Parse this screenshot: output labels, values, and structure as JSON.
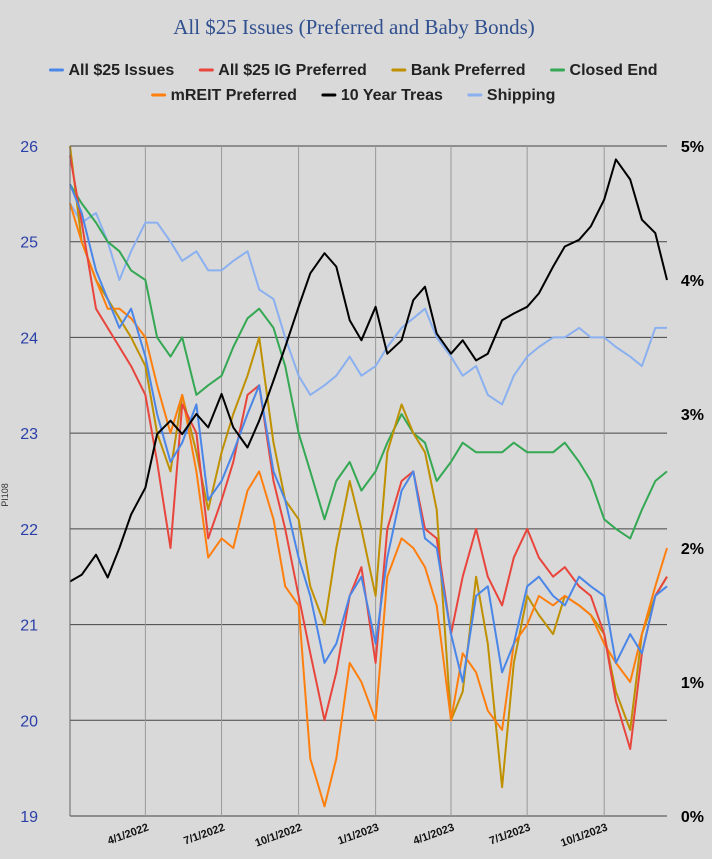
{
  "chart_data": {
    "type": "line",
    "title": "All $25 Issues (Preferred and Baby Bonds)",
    "ylabel": "PI108",
    "x_ticks": [
      "4/1/2022",
      "7/1/2022",
      "10/1/2022",
      "1/1/2023",
      "4/1/2023",
      "7/1/2023",
      "10/1/2023"
    ],
    "x_range": [
      "2022-01-01",
      "2023-12-15"
    ],
    "ylim_left": [
      19,
      26
    ],
    "y_ticks_left": [
      "19",
      "20",
      "21",
      "22",
      "23",
      "24",
      "25",
      "26"
    ],
    "ylim_right": [
      0,
      5
    ],
    "y_ticks_right": [
      "0%",
      "1%",
      "2%",
      "3%",
      "4%",
      "5%"
    ],
    "grid": "horizontal major lines, vertical lines at x ticks",
    "legend_position": "top",
    "series": [
      {
        "name": "All $25 Issues",
        "color": "#4a86e8",
        "axis": "left",
        "x": [
          "2022-01-01",
          "2022-01-15",
          "2022-02-01",
          "2022-02-15",
          "2022-03-01",
          "2022-03-15",
          "2022-04-01",
          "2022-04-15",
          "2022-05-01",
          "2022-05-15",
          "2022-06-01",
          "2022-06-15",
          "2022-07-01",
          "2022-07-15",
          "2022-08-01",
          "2022-08-15",
          "2022-09-01",
          "2022-09-15",
          "2022-10-01",
          "2022-10-15",
          "2022-11-01",
          "2022-11-15",
          "2022-12-01",
          "2022-12-15",
          "2023-01-01",
          "2023-01-15",
          "2023-02-01",
          "2023-02-15",
          "2023-03-01",
          "2023-03-15",
          "2023-04-01",
          "2023-04-15",
          "2023-05-01",
          "2023-05-15",
          "2023-06-01",
          "2023-06-15",
          "2023-07-01",
          "2023-07-15",
          "2023-08-01",
          "2023-08-15",
          "2023-09-01",
          "2023-09-15",
          "2023-10-01",
          "2023-10-15",
          "2023-11-01",
          "2023-11-15",
          "2023-12-01",
          "2023-12-15"
        ],
        "y": [
          25.6,
          25.3,
          24.7,
          24.4,
          24.1,
          24.3,
          23.8,
          23.2,
          22.7,
          22.9,
          23.3,
          22.3,
          22.5,
          22.8,
          23.2,
          23.5,
          22.6,
          22.3,
          21.7,
          21.3,
          20.6,
          20.8,
          21.3,
          21.5,
          20.8,
          21.7,
          22.4,
          22.6,
          21.9,
          21.8,
          20.9,
          20.4,
          21.3,
          21.4,
          20.5,
          20.8,
          21.4,
          21.5,
          21.3,
          21.2,
          21.5,
          21.4,
          21.3,
          20.6,
          20.9,
          20.7,
          21.3,
          21.4
        ]
      },
      {
        "name": "All $25 IG Preferred",
        "color": "#e8453c",
        "axis": "left",
        "x": [
          "2022-01-01",
          "2022-01-15",
          "2022-02-01",
          "2022-02-15",
          "2022-03-01",
          "2022-03-15",
          "2022-04-01",
          "2022-04-15",
          "2022-05-01",
          "2022-05-15",
          "2022-06-01",
          "2022-06-15",
          "2022-07-01",
          "2022-07-15",
          "2022-08-01",
          "2022-08-15",
          "2022-09-01",
          "2022-09-15",
          "2022-10-01",
          "2022-10-15",
          "2022-11-01",
          "2022-11-15",
          "2022-12-01",
          "2022-12-15",
          "2023-01-01",
          "2023-01-15",
          "2023-02-01",
          "2023-02-15",
          "2023-03-01",
          "2023-03-15",
          "2023-04-01",
          "2023-04-15",
          "2023-05-01",
          "2023-05-15",
          "2023-06-01",
          "2023-06-15",
          "2023-07-01",
          "2023-07-15",
          "2023-08-01",
          "2023-08-15",
          "2023-09-01",
          "2023-09-15",
          "2023-10-01",
          "2023-10-15",
          "2023-11-01",
          "2023-11-15",
          "2023-12-01",
          "2023-12-15"
        ],
        "y": [
          25.9,
          25.2,
          24.3,
          24.1,
          23.9,
          23.7,
          23.4,
          22.7,
          21.8,
          23.3,
          23.0,
          21.9,
          22.3,
          22.7,
          23.4,
          23.5,
          22.5,
          22.0,
          21.3,
          20.7,
          20.0,
          20.5,
          21.3,
          21.6,
          20.6,
          22.0,
          22.5,
          22.6,
          22.0,
          21.9,
          20.9,
          21.5,
          22.0,
          21.5,
          21.2,
          21.7,
          22.0,
          21.7,
          21.5,
          21.6,
          21.4,
          21.3,
          20.9,
          20.2,
          19.7,
          20.7,
          21.3,
          21.5
        ]
      },
      {
        "name": "Bank Preferred",
        "color": "#bf9000",
        "axis": "left",
        "x": [
          "2022-01-01",
          "2022-01-15",
          "2022-02-01",
          "2022-02-15",
          "2022-03-01",
          "2022-03-15",
          "2022-04-01",
          "2022-04-15",
          "2022-05-01",
          "2022-05-15",
          "2022-06-01",
          "2022-06-15",
          "2022-07-01",
          "2022-07-15",
          "2022-08-01",
          "2022-08-15",
          "2022-09-01",
          "2022-09-15",
          "2022-10-01",
          "2022-10-15",
          "2022-11-01",
          "2022-11-15",
          "2022-12-01",
          "2022-12-15",
          "2023-01-01",
          "2023-01-15",
          "2023-02-01",
          "2023-02-15",
          "2023-03-01",
          "2023-03-15",
          "2023-04-01",
          "2023-04-15",
          "2023-05-01",
          "2023-05-15",
          "2023-06-01",
          "2023-06-15",
          "2023-07-01",
          "2023-07-15",
          "2023-08-01",
          "2023-08-15",
          "2023-09-01",
          "2023-09-15",
          "2023-10-01",
          "2023-10-15",
          "2023-11-01",
          "2023-11-15",
          "2023-12-01",
          "2023-12-15"
        ],
        "y": [
          26.0,
          25.0,
          24.6,
          24.4,
          24.2,
          24.0,
          23.7,
          23.0,
          22.6,
          23.4,
          22.8,
          22.2,
          22.8,
          23.2,
          23.6,
          24.0,
          22.9,
          22.3,
          22.1,
          21.4,
          21.0,
          21.8,
          22.5,
          22.0,
          21.3,
          22.8,
          23.3,
          23.0,
          22.8,
          22.2,
          20.0,
          20.3,
          21.5,
          20.8,
          19.3,
          20.6,
          21.3,
          21.1,
          20.9,
          21.3,
          21.2,
          21.1,
          20.9,
          20.3,
          19.9,
          20.9,
          21.3,
          21.5
        ]
      },
      {
        "name": "Closed End",
        "color": "#34a853",
        "axis": "left",
        "x": [
          "2022-01-01",
          "2022-01-15",
          "2022-02-01",
          "2022-02-15",
          "2022-03-01",
          "2022-03-15",
          "2022-04-01",
          "2022-04-15",
          "2022-05-01",
          "2022-05-15",
          "2022-06-01",
          "2022-06-15",
          "2022-07-01",
          "2022-07-15",
          "2022-08-01",
          "2022-08-15",
          "2022-09-01",
          "2022-09-15",
          "2022-10-01",
          "2022-10-15",
          "2022-11-01",
          "2022-11-15",
          "2022-12-01",
          "2022-12-15",
          "2023-01-01",
          "2023-01-15",
          "2023-02-01",
          "2023-02-15",
          "2023-03-01",
          "2023-03-15",
          "2023-04-01",
          "2023-04-15",
          "2023-05-01",
          "2023-05-15",
          "2023-06-01",
          "2023-06-15",
          "2023-07-01",
          "2023-07-15",
          "2023-08-01",
          "2023-08-15",
          "2023-09-01",
          "2023-09-15",
          "2023-10-01",
          "2023-10-15",
          "2023-11-01",
          "2023-11-15",
          "2023-12-01",
          "2023-12-15"
        ],
        "y": [
          25.6,
          25.4,
          25.2,
          25.0,
          24.9,
          24.7,
          24.6,
          24.0,
          23.8,
          24.0,
          23.4,
          23.5,
          23.6,
          23.9,
          24.2,
          24.3,
          24.1,
          23.7,
          23.0,
          22.6,
          22.1,
          22.5,
          22.7,
          22.4,
          22.6,
          22.9,
          23.2,
          23.0,
          22.9,
          22.5,
          22.7,
          22.9,
          22.8,
          22.8,
          22.8,
          22.9,
          22.8,
          22.8,
          22.8,
          22.9,
          22.7,
          22.5,
          22.1,
          22.0,
          21.9,
          22.2,
          22.5,
          22.6
        ]
      },
      {
        "name": "mREIT Preferred",
        "color": "#ff7f0e",
        "axis": "left",
        "x": [
          "2022-01-01",
          "2022-01-15",
          "2022-02-01",
          "2022-02-15",
          "2022-03-01",
          "2022-03-15",
          "2022-04-01",
          "2022-04-15",
          "2022-05-01",
          "2022-05-15",
          "2022-06-01",
          "2022-06-15",
          "2022-07-01",
          "2022-07-15",
          "2022-08-01",
          "2022-08-15",
          "2022-09-01",
          "2022-09-15",
          "2022-10-01",
          "2022-10-15",
          "2022-11-01",
          "2022-11-15",
          "2022-12-01",
          "2022-12-15",
          "2023-01-01",
          "2023-01-15",
          "2023-02-01",
          "2023-02-15",
          "2023-03-01",
          "2023-03-15",
          "2023-04-01",
          "2023-04-15",
          "2023-05-01",
          "2023-05-15",
          "2023-06-01",
          "2023-06-15",
          "2023-07-01",
          "2023-07-15",
          "2023-08-01",
          "2023-08-15",
          "2023-09-01",
          "2023-09-15",
          "2023-10-01",
          "2023-10-15",
          "2023-11-01",
          "2023-11-15",
          "2023-12-01",
          "2023-12-15"
        ],
        "y": [
          25.4,
          25.0,
          24.6,
          24.3,
          24.3,
          24.2,
          24.0,
          23.5,
          23.0,
          23.4,
          22.6,
          21.7,
          21.9,
          21.8,
          22.4,
          22.6,
          22.1,
          21.4,
          21.2,
          19.6,
          19.1,
          19.6,
          20.6,
          20.4,
          20.0,
          21.5,
          21.9,
          21.8,
          21.6,
          21.2,
          20.0,
          20.7,
          20.5,
          20.1,
          19.9,
          20.8,
          21.0,
          21.3,
          21.2,
          21.3,
          21.2,
          21.1,
          20.8,
          20.6,
          20.4,
          20.9,
          21.4,
          21.8
        ]
      },
      {
        "name": "10 Year Treas",
        "color": "#000000",
        "axis": "right",
        "x": [
          "2022-01-01",
          "2022-01-15",
          "2022-02-01",
          "2022-02-15",
          "2022-03-01",
          "2022-03-15",
          "2022-04-01",
          "2022-04-15",
          "2022-05-01",
          "2022-05-15",
          "2022-06-01",
          "2022-06-15",
          "2022-07-01",
          "2022-07-15",
          "2022-08-01",
          "2022-08-15",
          "2022-09-01",
          "2022-09-15",
          "2022-10-01",
          "2022-10-15",
          "2022-11-01",
          "2022-11-15",
          "2022-12-01",
          "2022-12-15",
          "2023-01-01",
          "2023-01-15",
          "2023-02-01",
          "2023-02-15",
          "2023-03-01",
          "2023-03-15",
          "2023-04-01",
          "2023-04-15",
          "2023-05-01",
          "2023-05-15",
          "2023-06-01",
          "2023-06-15",
          "2023-07-01",
          "2023-07-15",
          "2023-08-01",
          "2023-08-15",
          "2023-09-01",
          "2023-09-15",
          "2023-10-01",
          "2023-10-15",
          "2023-11-01",
          "2023-11-15",
          "2023-12-01",
          "2023-12-15"
        ],
        "y": [
          1.75,
          1.8,
          1.95,
          1.78,
          2.0,
          2.25,
          2.45,
          2.85,
          2.95,
          2.85,
          3.0,
          2.9,
          3.15,
          2.9,
          2.75,
          2.95,
          3.25,
          3.5,
          3.8,
          4.05,
          4.2,
          4.1,
          3.7,
          3.55,
          3.8,
          3.45,
          3.55,
          3.85,
          3.95,
          3.6,
          3.45,
          3.55,
          3.4,
          3.45,
          3.7,
          3.75,
          3.8,
          3.9,
          4.1,
          4.25,
          4.3,
          4.4,
          4.6,
          4.9,
          4.75,
          4.45,
          4.35,
          4.0
        ]
      },
      {
        "name": "Shipping",
        "color": "#8ab0f0",
        "axis": "left",
        "x": [
          "2022-01-01",
          "2022-01-15",
          "2022-02-01",
          "2022-02-15",
          "2022-03-01",
          "2022-03-15",
          "2022-04-01",
          "2022-04-15",
          "2022-05-01",
          "2022-05-15",
          "2022-06-01",
          "2022-06-15",
          "2022-07-01",
          "2022-07-15",
          "2022-08-01",
          "2022-08-15",
          "2022-09-01",
          "2022-09-15",
          "2022-10-01",
          "2022-10-15",
          "2022-11-01",
          "2022-11-15",
          "2022-12-01",
          "2022-12-15",
          "2023-01-01",
          "2023-01-15",
          "2023-02-01",
          "2023-02-15",
          "2023-03-01",
          "2023-03-15",
          "2023-04-01",
          "2023-04-15",
          "2023-05-01",
          "2023-05-15",
          "2023-06-01",
          "2023-06-15",
          "2023-07-01",
          "2023-07-15",
          "2023-08-01",
          "2023-08-15",
          "2023-09-01",
          "2023-09-15",
          "2023-10-01",
          "2023-10-15",
          "2023-11-01",
          "2023-11-15",
          "2023-12-01",
          "2023-12-15"
        ],
        "y": [
          25.4,
          25.2,
          25.3,
          25.0,
          24.6,
          24.9,
          25.2,
          25.2,
          25.0,
          24.8,
          24.9,
          24.7,
          24.7,
          24.8,
          24.9,
          24.5,
          24.4,
          24.0,
          23.6,
          23.4,
          23.5,
          23.6,
          23.8,
          23.6,
          23.7,
          23.9,
          24.1,
          24.2,
          24.3,
          24.0,
          23.8,
          23.6,
          23.7,
          23.4,
          23.3,
          23.6,
          23.8,
          23.9,
          24.0,
          24.0,
          24.1,
          24.0,
          24.0,
          23.9,
          23.8,
          23.7,
          24.1,
          24.1
        ]
      }
    ]
  }
}
